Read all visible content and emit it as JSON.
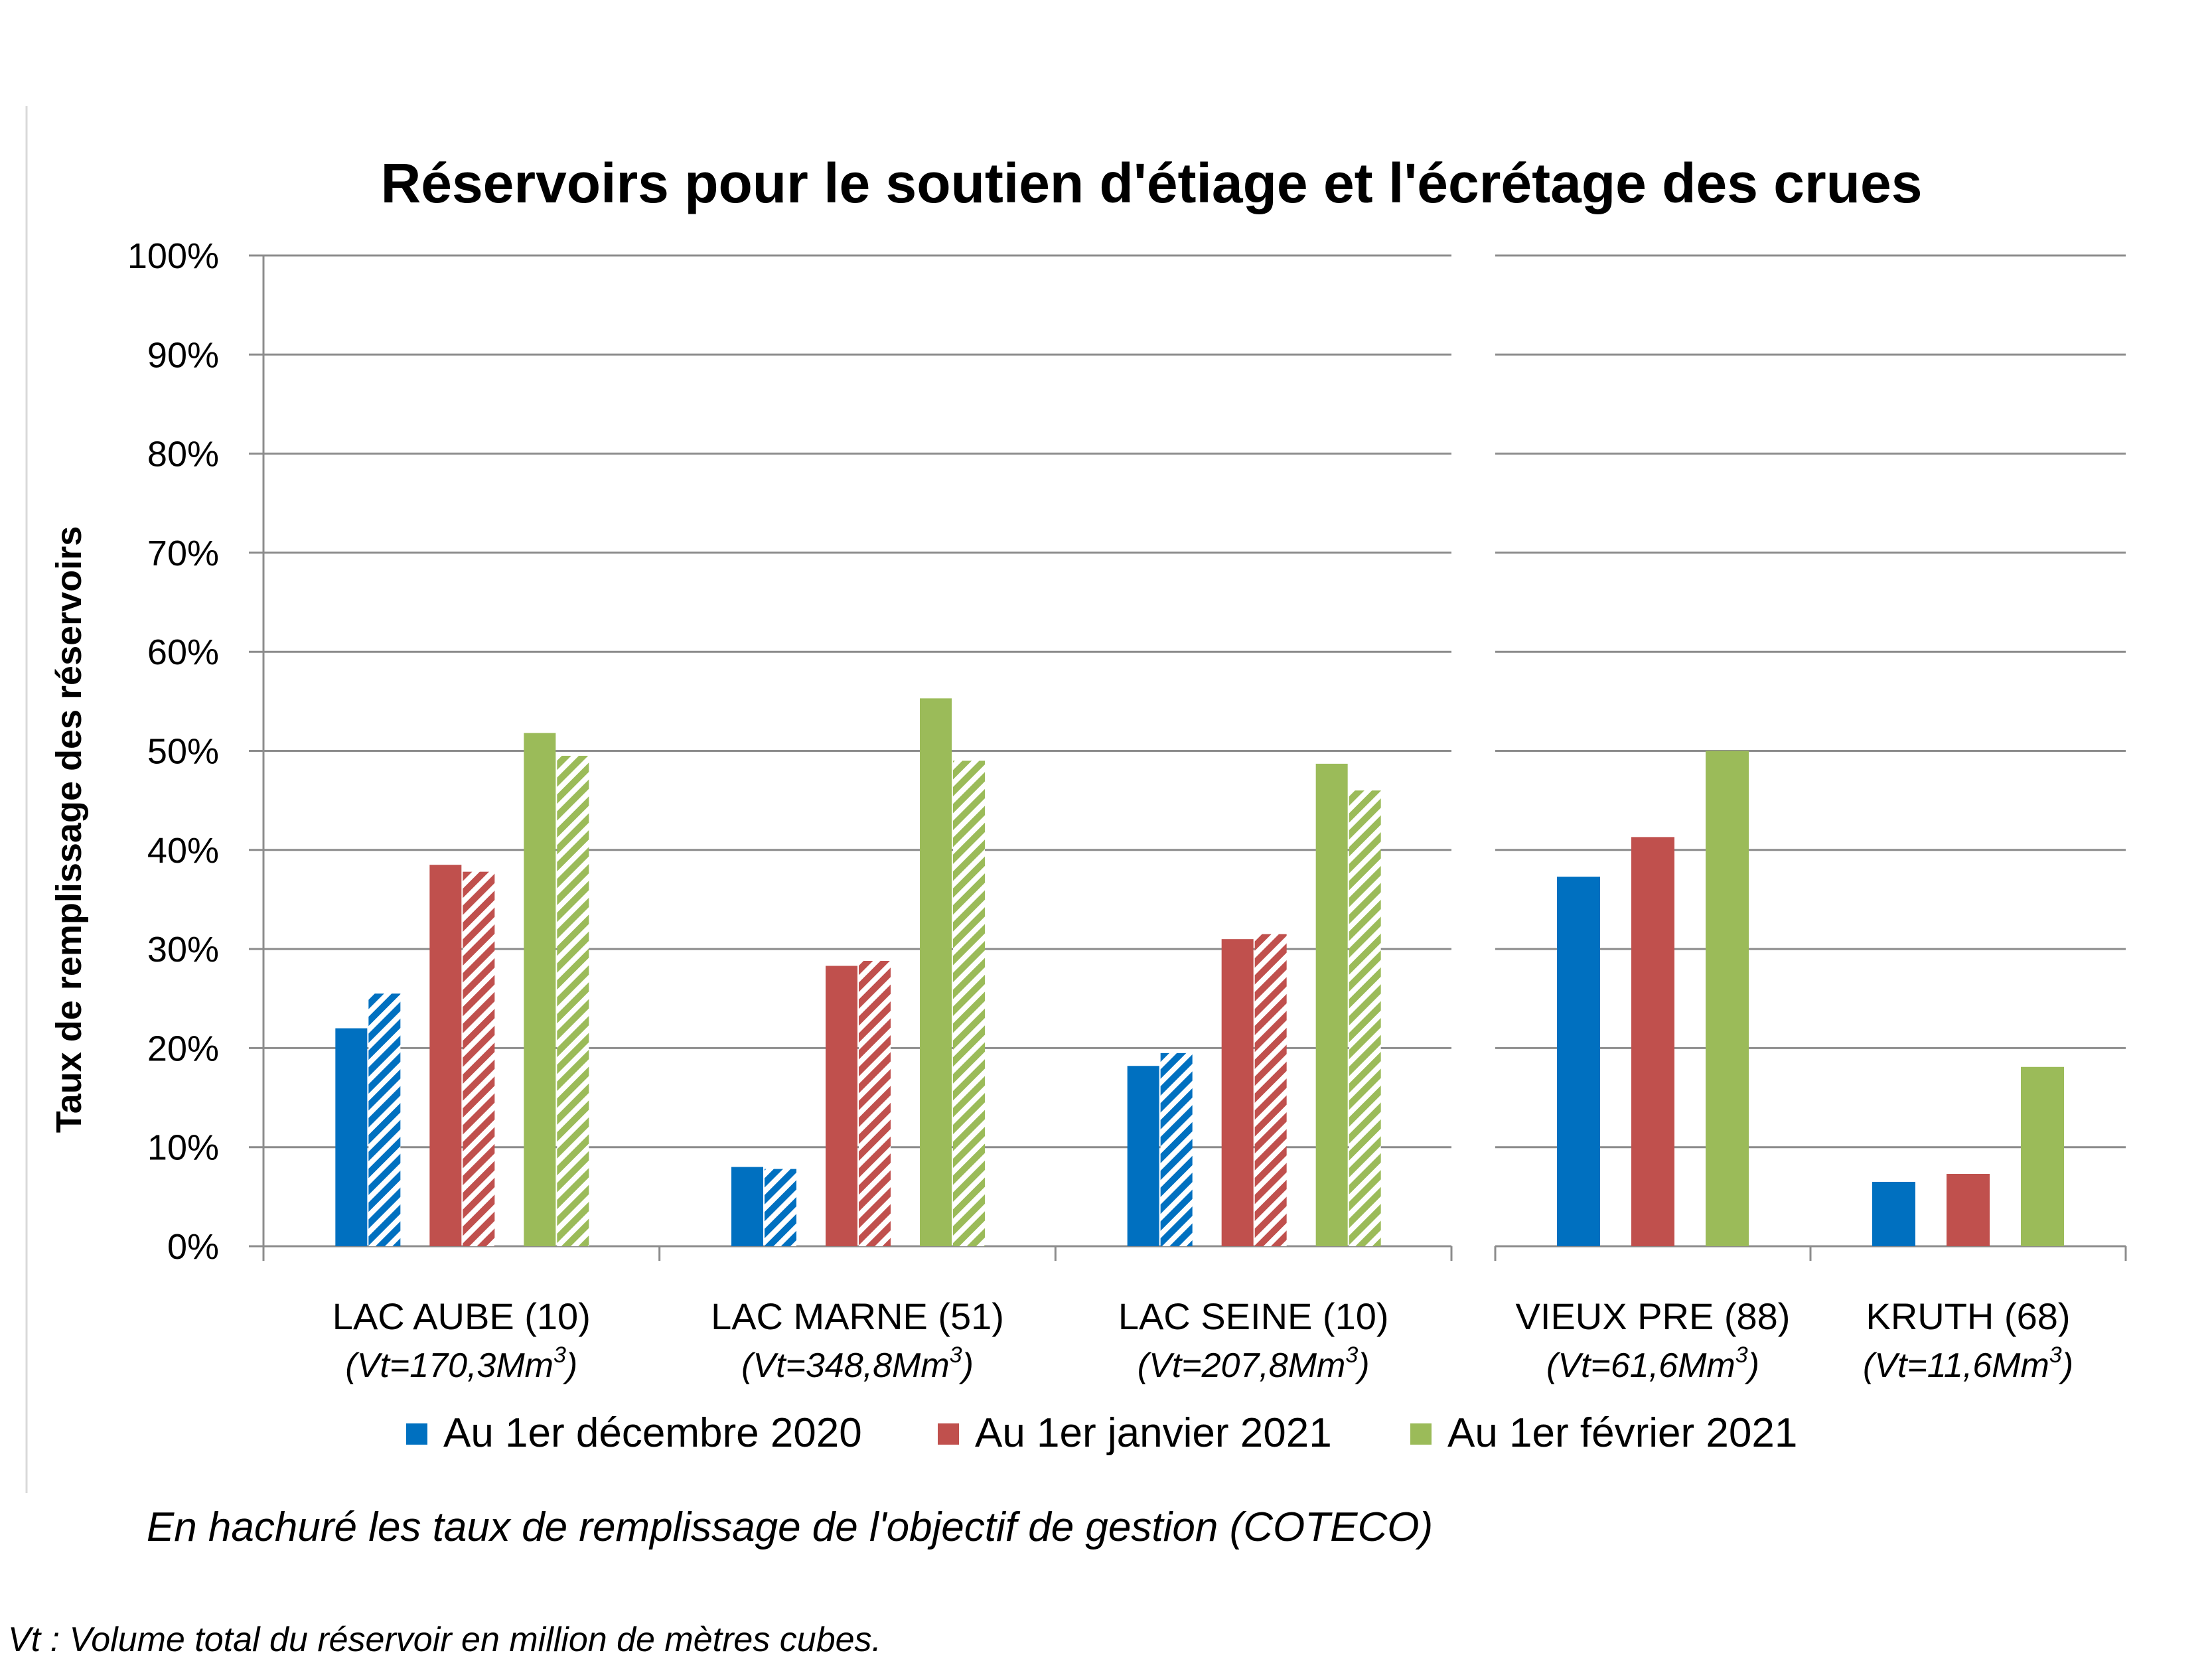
{
  "chart_data": {
    "type": "bar",
    "title": "Réservoirs pour le soutien d'étiage et l'écrétage des crues",
    "ylabel": "Taux de remplissage des réservoirs",
    "ylim": [
      0,
      100
    ],
    "yticks": [
      "0%",
      "10%",
      "20%",
      "30%",
      "40%",
      "50%",
      "60%",
      "70%",
      "80%",
      "90%",
      "100%"
    ],
    "grid": true,
    "legend_position": "bottom",
    "series": [
      {
        "name": "Au 1er décembre 2020",
        "color": "#0070C0"
      },
      {
        "name": "Au 1er janvier 2021",
        "color": "#C0504D"
      },
      {
        "name": "Au 1er février 2021",
        "color": "#9BBB59"
      }
    ],
    "panels": [
      {
        "categories": [
          {
            "label": "LAC AUBE (10)",
            "volume": "(Vt=170,3Mm",
            "volume_sup": "3",
            "volume_end": ")",
            "values": [
              22,
              38.5,
              51.8
            ],
            "target_values": [
              25.5,
              37.8,
              49.5
            ]
          },
          {
            "label": "LAC MARNE (51)",
            "volume": "(Vt=348,8Mm",
            "volume_sup": "3",
            "volume_end": ")",
            "values": [
              8,
              28.3,
              55.3
            ],
            "target_values": [
              7.8,
              28.8,
              49
            ]
          },
          {
            "label": "LAC SEINE (10)",
            "volume": "(Vt=207,8Mm",
            "volume_sup": "3",
            "volume_end": ")",
            "values": [
              18.2,
              31,
              48.7
            ],
            "target_values": [
              19.5,
              31.5,
              46
            ]
          }
        ]
      },
      {
        "categories": [
          {
            "label": "VIEUX PRE (88)",
            "volume": "(Vt=61,6Mm",
            "volume_sup": "3",
            "volume_end": ")",
            "values": [
              37.3,
              41.3,
              50
            ]
          },
          {
            "label": "KRUTH (68)",
            "volume": "(Vt=11,6Mm",
            "volume_sup": "3",
            "volume_end": ")",
            "values": [
              6.5,
              7.3,
              18.1
            ]
          }
        ]
      }
    ],
    "note": "En hachuré les taux de remplissage de l'objectif de gestion (COTECO)",
    "footnote": "Vt : Volume total du réservoir en million de mètres cubes."
  }
}
